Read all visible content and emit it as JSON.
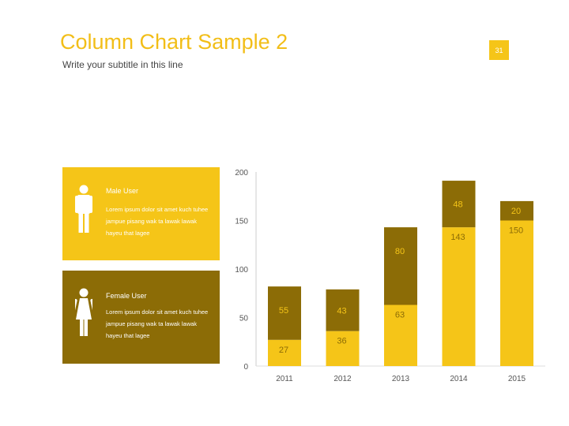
{
  "header": {
    "title": "Column Chart Sample 2",
    "subtitle": "Write your subtitle in this line",
    "page_number": "31"
  },
  "colors": {
    "accent": "#F5C518",
    "dark": "#8C6C06",
    "title": "#F2BE18",
    "axis_text": "#555555"
  },
  "cards": {
    "male": {
      "icon": "male-user-icon",
      "title": "Male User",
      "text": "Lorem ipsum dolor sit amet kuch tuhee jampue pisang wak ta lawak lawak hayeu that lagee"
    },
    "female": {
      "icon": "female-user-icon",
      "title": "Female User",
      "text": "Lorem ipsum dolor sit amet kuch tuhee jampue pisang wak ta lawak lawak hayeu that lagee"
    }
  },
  "chart_data": {
    "type": "bar",
    "stacked": true,
    "categories": [
      "2011",
      "2012",
      "2013",
      "2014",
      "2015"
    ],
    "series": [
      {
        "name": "",
        "color": "#F5C518",
        "values": [
          27,
          36,
          63,
          143,
          150
        ]
      },
      {
        "name": "",
        "color": "#8C6C06",
        "values": [
          55,
          43,
          80,
          48,
          20
        ]
      }
    ],
    "ylim": [
      0,
      200
    ],
    "yticks": [
      "0",
      "50",
      "100",
      "150",
      "200"
    ],
    "grid": false,
    "title": "",
    "xlabel": "",
    "ylabel": ""
  }
}
